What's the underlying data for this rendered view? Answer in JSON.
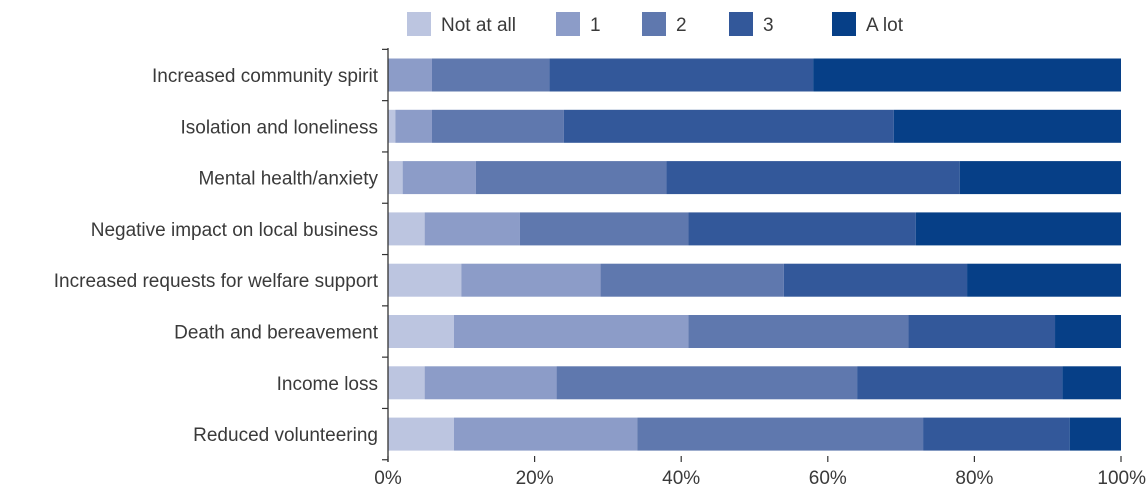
{
  "chart_data": {
    "type": "bar",
    "orientation": "horizontal",
    "stacked": true,
    "percent": true,
    "legend_position": "top",
    "grid": false,
    "xlim": [
      0,
      100
    ],
    "x_ticks": [
      "0%",
      "20%",
      "40%",
      "60%",
      "80%",
      "100%"
    ],
    "categories": [
      "Increased community spirit",
      "Isolation and loneliness",
      "Mental health/anxiety",
      "Negative impact on local business",
      "Increased requests for welfare support",
      "Death and bereavement",
      "Income loss",
      "Reduced volunteering"
    ],
    "series": [
      {
        "name": "Not at all",
        "color": "#bcc5e0",
        "values": [
          0,
          1,
          2,
          5,
          10,
          9,
          5,
          9
        ]
      },
      {
        "name": "1",
        "color": "#8c9cc8",
        "values": [
          6,
          5,
          10,
          13,
          19,
          32,
          18,
          25
        ]
      },
      {
        "name": "2",
        "color": "#5f78ae",
        "values": [
          16,
          18,
          26,
          23,
          25,
          30,
          41,
          39
        ]
      },
      {
        "name": "3",
        "color": "#33589a",
        "values": [
          36,
          45,
          40,
          31,
          25,
          20,
          28,
          20
        ]
      },
      {
        "name": "A lot",
        "color": "#063f87",
        "values": [
          42,
          31,
          22,
          28,
          21,
          9,
          8,
          7
        ]
      }
    ]
  }
}
